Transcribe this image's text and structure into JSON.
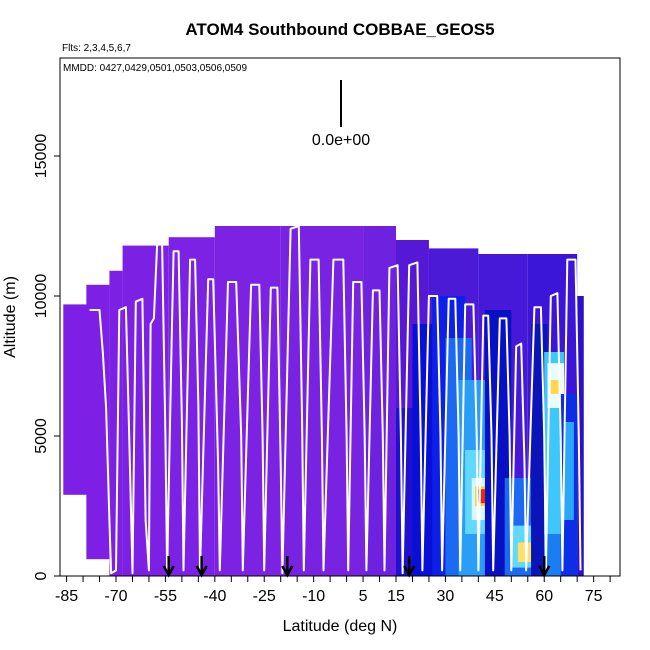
{
  "chart_data": {
    "type": "heatmap",
    "title": "ATOM4 Southbound COBBAE_GEOS5",
    "flights_label": "Flts: 2,3,4,5,6,7",
    "dates_label": "MMDD: 0427,0429,0501,0503,0506,0509",
    "xlabel": "Latitude (deg N)",
    "ylabel": "Altitude (m)",
    "xlim": [
      -87,
      83
    ],
    "ylim": [
      0,
      18500
    ],
    "xticks": [
      -85,
      -70,
      -55,
      -40,
      -25,
      -10,
      5,
      15,
      30,
      45,
      60,
      75
    ],
    "xtick_labels": [
      "-85",
      "-70",
      "-55",
      "-40",
      "-25",
      "-10",
      "5",
      "15",
      "30",
      "45",
      "60",
      "75"
    ],
    "xticks_minor": [
      -80,
      -75,
      -65,
      -60,
      -50,
      -45,
      -35,
      -30,
      -20,
      -15,
      -5,
      0,
      10,
      20,
      25,
      35,
      40,
      50,
      55,
      65,
      70,
      80
    ],
    "yticks": [
      0,
      5000,
      10000,
      15000
    ],
    "ytick_labels": [
      "0",
      "5000",
      "10000",
      "15000"
    ],
    "scale_annotation": "0.0e+00",
    "arrow_latitudes": [
      -54,
      -44,
      -18,
      19,
      60
    ],
    "background_columns": [
      {
        "lat0": -86,
        "lat1": -78,
        "top": 9700,
        "bottom": 2900,
        "color": "#7e1fe6"
      },
      {
        "lat0": -79,
        "lat1": -72,
        "top": 10400,
        "bottom": 600,
        "color": "#7d1fe4"
      },
      {
        "lat0": -72,
        "lat1": -68,
        "top": 10900,
        "bottom": 0,
        "color": "#7c20e4"
      },
      {
        "lat0": -68,
        "lat1": -54,
        "top": 11800,
        "bottom": 0,
        "color": "#7c21e4"
      },
      {
        "lat0": -54,
        "lat1": -40,
        "top": 12100,
        "bottom": 0,
        "color": "#7b22e4"
      },
      {
        "lat0": -40,
        "lat1": -20,
        "top": 12500,
        "bottom": 0,
        "color": "#7b22e3"
      },
      {
        "lat0": -20,
        "lat1": 5,
        "top": 12500,
        "bottom": 0,
        "color": "#7923e2"
      },
      {
        "lat0": 5,
        "lat1": 15,
        "top": 12500,
        "bottom": 0,
        "color": "#6e22df"
      },
      {
        "lat0": 15,
        "lat1": 25,
        "top": 12000,
        "bottom": 0,
        "color": "#5418d6"
      },
      {
        "lat0": 25,
        "lat1": 40,
        "top": 11700,
        "bottom": 0,
        "color": "#4a1ad6"
      },
      {
        "lat0": 40,
        "lat1": 55,
        "top": 11500,
        "bottom": 0,
        "color": "#4619d8"
      },
      {
        "lat0": 55,
        "lat1": 70,
        "top": 11500,
        "bottom": 0,
        "color": "#3c16d8"
      },
      {
        "lat0": 70,
        "lat1": 72,
        "top": 10000,
        "bottom": 0,
        "color": "#2a10c8"
      }
    ],
    "color_patches": [
      {
        "lat0": 15,
        "lat1": 22,
        "z0": 0,
        "z1": 6000,
        "color": "#2010d0"
      },
      {
        "lat0": 20,
        "lat1": 28,
        "z0": 0,
        "z1": 9000,
        "color": "#0a0fd8"
      },
      {
        "lat0": 26,
        "lat1": 36,
        "z0": 0,
        "z1": 10000,
        "color": "#0d20e8"
      },
      {
        "lat0": 30,
        "lat1": 38,
        "z0": 0,
        "z1": 8500,
        "color": "#1c6af2"
      },
      {
        "lat0": 34,
        "lat1": 42,
        "z0": 0,
        "z1": 7000,
        "color": "#2a9ef6"
      },
      {
        "lat0": 36,
        "lat1": 44,
        "z0": 1500,
        "z1": 4500,
        "color": "#62d8fb"
      },
      {
        "lat0": 38,
        "lat1": 44,
        "z0": 2000,
        "z1": 3500,
        "color": "#d8f8ff"
      },
      {
        "lat0": 39,
        "lat1": 43,
        "z0": 2500,
        "z1": 3200,
        "color": "#ffcc33"
      },
      {
        "lat0": 40,
        "lat1": 42,
        "z0": 2600,
        "z1": 3100,
        "color": "#e62a10"
      },
      {
        "lat0": 42,
        "lat1": 50,
        "z0": 0,
        "z1": 9500,
        "color": "#0810c4"
      },
      {
        "lat0": 48,
        "lat1": 56,
        "z0": 0,
        "z1": 3500,
        "color": "#1c6af2"
      },
      {
        "lat0": 50,
        "lat1": 58,
        "z0": 300,
        "z1": 1800,
        "color": "#62d8fb"
      },
      {
        "lat0": 52,
        "lat1": 56,
        "z0": 500,
        "z1": 1200,
        "color": "#ffe066"
      },
      {
        "lat0": 56,
        "lat1": 61,
        "z0": 0,
        "z1": 9000,
        "color": "#0b14b8"
      },
      {
        "lat0": 60,
        "lat1": 66,
        "z0": 0,
        "z1": 8000,
        "color": "#1a7ef2"
      },
      {
        "lat0": 60,
        "lat1": 66,
        "z0": 1500,
        "z1": 8000,
        "color": "#3fc7fb"
      },
      {
        "lat0": 61,
        "lat1": 66,
        "z0": 6000,
        "z1": 7600,
        "color": "#e8fbff"
      },
      {
        "lat0": 62,
        "lat1": 65,
        "z0": 6500,
        "z1": 7000,
        "color": "#ffd84d"
      },
      {
        "lat0": 65,
        "lat1": 70,
        "z0": 0,
        "z1": 6500,
        "color": "#0d2ee6"
      },
      {
        "lat0": 66,
        "lat1": 69,
        "z0": 2000,
        "z1": 5500,
        "color": "#2aa7f6"
      }
    ],
    "flight_track": [
      [
        -78,
        9500
      ],
      [
        -75,
        9500
      ],
      [
        -74,
        8000
      ],
      [
        -73,
        6000
      ],
      [
        -72,
        2000
      ],
      [
        -71.5,
        100
      ],
      [
        -70,
        200
      ],
      [
        -69,
        9500
      ],
      [
        -67,
        9600
      ],
      [
        -66,
        5000
      ],
      [
        -65,
        100
      ],
      [
        -64,
        9800
      ],
      [
        -62,
        9900
      ],
      [
        -61,
        2000
      ],
      [
        -60,
        200
      ],
      [
        -59.5,
        9000
      ],
      [
        -58.5,
        9200
      ],
      [
        -57.5,
        11900
      ],
      [
        -56,
        11900
      ],
      [
        -55,
        5000
      ],
      [
        -54.5,
        200
      ],
      [
        -53,
        9000
      ],
      [
        -52.5,
        11600
      ],
      [
        -51,
        11600
      ],
      [
        -50,
        5500
      ],
      [
        -49.5,
        200
      ],
      [
        -48,
        8500
      ],
      [
        -47.5,
        11300
      ],
      [
        -46,
        11300
      ],
      [
        -45,
        6000
      ],
      [
        -44.5,
        200
      ],
      [
        -42,
        10600
      ],
      [
        -40.5,
        10600
      ],
      [
        -39,
        4000
      ],
      [
        -38.5,
        200
      ],
      [
        -36,
        10500
      ],
      [
        -33.5,
        10500
      ],
      [
        -32,
        5000
      ],
      [
        -31.5,
        200
      ],
      [
        -29,
        10400
      ],
      [
        -26.5,
        10400
      ],
      [
        -25.5,
        5000
      ],
      [
        -25,
        200
      ],
      [
        -23,
        10300
      ],
      [
        -21,
        10300
      ],
      [
        -20,
        4000
      ],
      [
        -19.5,
        100
      ],
      [
        -17,
        12400
      ],
      [
        -14.5,
        12500
      ],
      [
        -13.5,
        5500
      ],
      [
        -13,
        200
      ],
      [
        -11,
        11300
      ],
      [
        -8.5,
        11300
      ],
      [
        -7.5,
        5000
      ],
      [
        -7,
        200
      ],
      [
        -4,
        11300
      ],
      [
        -1,
        11300
      ],
      [
        0,
        5000
      ],
      [
        0.5,
        200
      ],
      [
        2,
        10500
      ],
      [
        4.5,
        10500
      ],
      [
        5.5,
        5000
      ],
      [
        6,
        200
      ],
      [
        8,
        10200
      ],
      [
        10,
        10200
      ],
      [
        11,
        5000
      ],
      [
        11.5,
        200
      ],
      [
        13,
        11000
      ],
      [
        15.5,
        11100
      ],
      [
        16.5,
        5000
      ],
      [
        17,
        100
      ],
      [
        19,
        11100
      ],
      [
        21.5,
        11200
      ],
      [
        22.5,
        5000
      ],
      [
        23,
        200
      ],
      [
        25,
        10000
      ],
      [
        27.5,
        10000
      ],
      [
        28.5,
        5000
      ],
      [
        29,
        200
      ],
      [
        31,
        9900
      ],
      [
        33,
        9900
      ],
      [
        34,
        5000
      ],
      [
        34.5,
        200
      ],
      [
        36,
        9700
      ],
      [
        38.5,
        9700
      ],
      [
        39.5,
        5000
      ],
      [
        40,
        200
      ],
      [
        41.5,
        9300
      ],
      [
        43,
        9300
      ],
      [
        44,
        5000
      ],
      [
        44.5,
        200
      ],
      [
        46.5,
        9200
      ],
      [
        48.5,
        9200
      ],
      [
        49.5,
        5000
      ],
      [
        50,
        200
      ],
      [
        51.5,
        8200
      ],
      [
        53,
        8300
      ],
      [
        54,
        4000
      ],
      [
        54.5,
        200
      ],
      [
        57,
        9600
      ],
      [
        59,
        9600
      ],
      [
        60,
        5000
      ],
      [
        60.5,
        200
      ],
      [
        62,
        10000
      ],
      [
        64,
        10100
      ],
      [
        65,
        5000
      ],
      [
        65.5,
        200
      ],
      [
        67,
        11300
      ],
      [
        69.5,
        11300
      ],
      [
        70.5,
        5000
      ],
      [
        71,
        200
      ]
    ]
  }
}
